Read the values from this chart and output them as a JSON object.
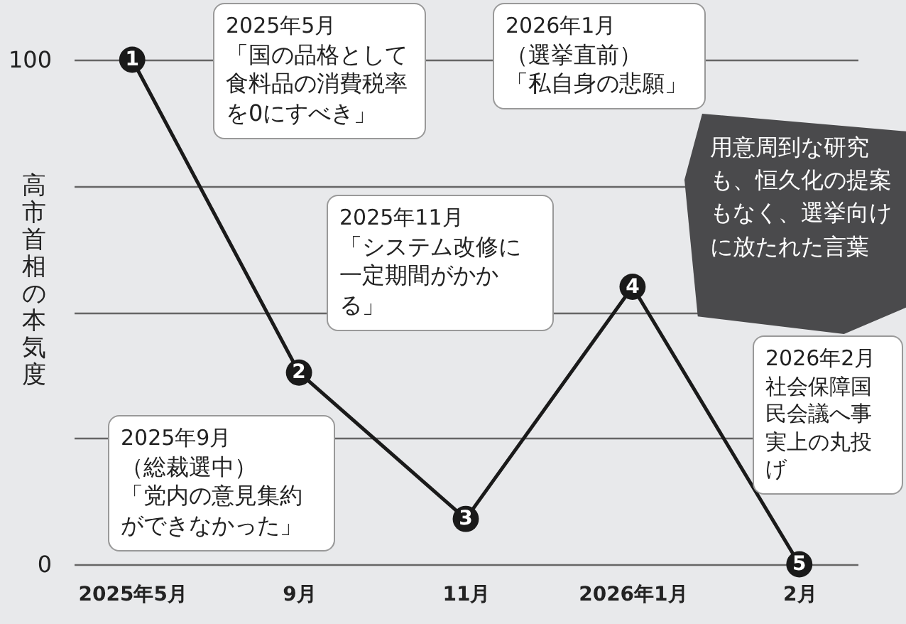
{
  "chart_data": {
    "type": "line",
    "ylabel": "高市首相の本気度",
    "categories": [
      "2025年5月",
      "9月",
      "11月",
      "2026年1月",
      "2月"
    ],
    "ylim": [
      0,
      100
    ],
    "yticks": [
      0,
      {
        "value": 25,
        "label": null
      },
      {
        "value": 50,
        "label": null
      },
      {
        "value": 75,
        "label": null
      },
      100
    ],
    "grid": "y",
    "marker": "circle",
    "line_style": "solid",
    "series": [
      {
        "color": "#1a1a1a",
        "values": [
          100,
          38,
          9,
          55,
          0
        ]
      }
    ],
    "annotations": [
      "2025年5月",
      "「国の品格として食料品の消費税率を0にすべき」",
      "2025年9月",
      "（総裁選中）",
      "「党内の意見集約ができなかった」",
      "2025年11月",
      "「システム改修に一定期間がかかる」",
      "2026年1月",
      "（選挙直前）",
      "「私自身の悲願」",
      "2026年2月",
      "社会保障国民会議へ事実上の丸投げ",
      "用意周到な研究も、恒久化の提案もなく、選挙向けに放たれた言葉",
      {
        "text": "1",
        "x": "2025年5月",
        "y": 100
      },
      {
        "text": "2",
        "x": "9月",
        "y": 38
      },
      {
        "text": "3",
        "x": "11月",
        "y": 9
      },
      {
        "text": "4",
        "x": "2026年1月",
        "y": 55
      },
      {
        "text": "5",
        "x": "2月",
        "y": 0
      }
    ]
  }
}
